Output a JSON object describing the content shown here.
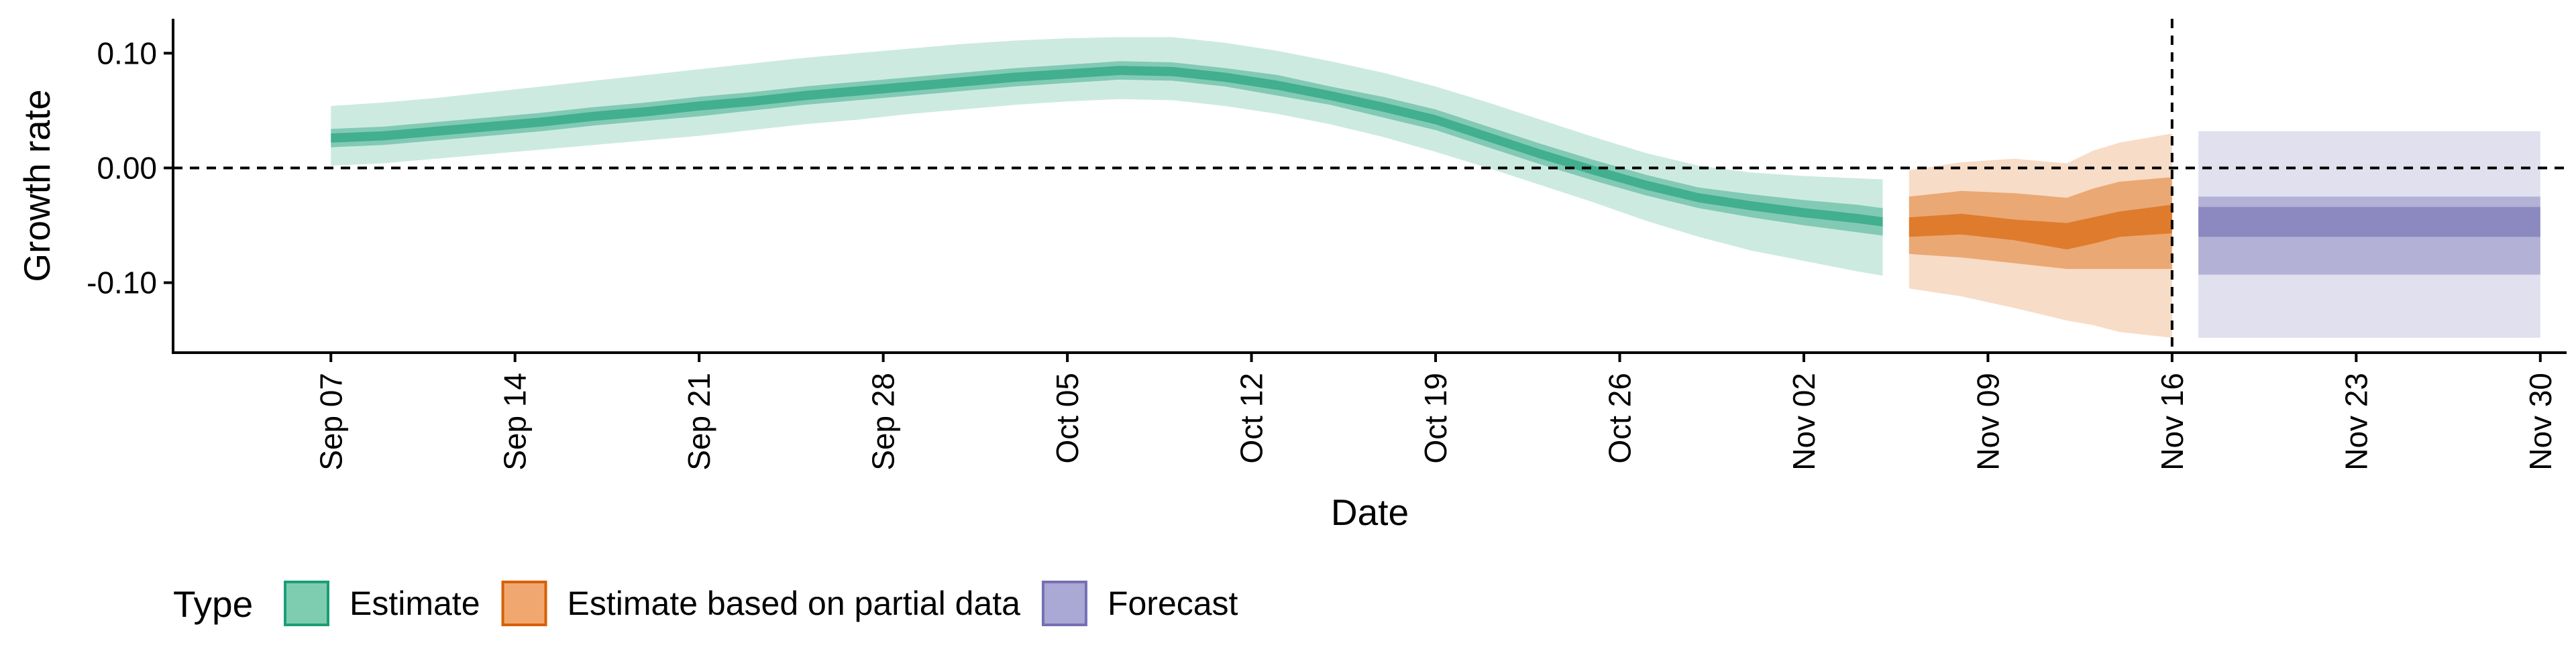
{
  "chart_data": {
    "type": "area",
    "title": "",
    "xlabel": "Date",
    "ylabel": "Growth rate",
    "x_range": [
      "2020-09-01",
      "2020-12-01"
    ],
    "ylim": [
      -0.161,
      0.13
    ],
    "grid": false,
    "y_ticks": [
      0.1,
      0.0,
      -0.1
    ],
    "y_tick_labels": [
      "0.10",
      "0.00",
      "-0.10"
    ],
    "x_ticks": [
      "2020-09-07",
      "2020-09-14",
      "2020-09-21",
      "2020-09-28",
      "2020-10-05",
      "2020-10-12",
      "2020-10-19",
      "2020-10-26",
      "2020-11-02",
      "2020-11-09",
      "2020-11-16",
      "2020-11-23",
      "2020-11-30"
    ],
    "x_tick_labels": [
      "Sep 07",
      "Sep 14",
      "Sep 21",
      "Sep 28",
      "Oct 05",
      "Oct 12",
      "Oct 19",
      "Oct 26",
      "Nov 02",
      "Nov 09",
      "Nov 16",
      "Nov 23",
      "Nov 30"
    ],
    "reference_lines": [
      {
        "axis": "y",
        "value": 0.0,
        "style": "dashed"
      },
      {
        "axis": "x",
        "value": "2020-11-16",
        "style": "dashed"
      }
    ],
    "legend": {
      "title": "Type",
      "position": "bottom-left",
      "entries": [
        {
          "label": "Estimate",
          "fill": "#7fcdb0",
          "stroke": "#1b9e77"
        },
        {
          "label": "Estimate based on partial data",
          "fill": "#f0a870",
          "stroke": "#d95f02"
        },
        {
          "label": "Forecast",
          "fill": "#aaa8d4",
          "stroke": "#7570b3"
        }
      ]
    },
    "series": [
      {
        "name": "Estimate",
        "color": "#1b9e77",
        "x": [
          "2020-09-07",
          "2020-09-09",
          "2020-09-11",
          "2020-09-13",
          "2020-09-15",
          "2020-09-17",
          "2020-09-19",
          "2020-09-21",
          "2020-09-23",
          "2020-09-25",
          "2020-09-27",
          "2020-09-29",
          "2020-10-01",
          "2020-10-03",
          "2020-10-05",
          "2020-10-07",
          "2020-10-09",
          "2020-10-11",
          "2020-10-13",
          "2020-10-15",
          "2020-10-17",
          "2020-10-19",
          "2020-10-21",
          "2020-10-23",
          "2020-10-25",
          "2020-10-27",
          "2020-10-29",
          "2020-10-31",
          "2020-11-02",
          "2020-11-04",
          "2020-11-05"
        ],
        "lower90": [
          0.002,
          0.004,
          0.008,
          0.012,
          0.016,
          0.02,
          0.024,
          0.028,
          0.033,
          0.038,
          0.042,
          0.047,
          0.051,
          0.055,
          0.058,
          0.06,
          0.059,
          0.054,
          0.047,
          0.038,
          0.027,
          0.014,
          0.0,
          -0.015,
          -0.03,
          -0.046,
          -0.06,
          -0.072,
          -0.081,
          -0.09,
          -0.094
        ],
        "lower50": [
          0.018,
          0.02,
          0.024,
          0.028,
          0.032,
          0.037,
          0.041,
          0.045,
          0.05,
          0.055,
          0.059,
          0.063,
          0.067,
          0.071,
          0.074,
          0.077,
          0.076,
          0.071,
          0.063,
          0.055,
          0.044,
          0.033,
          0.018,
          0.003,
          -0.011,
          -0.024,
          -0.035,
          -0.043,
          -0.05,
          -0.056,
          -0.059
        ],
        "lower20": [
          0.022,
          0.024,
          0.028,
          0.032,
          0.036,
          0.041,
          0.045,
          0.05,
          0.054,
          0.059,
          0.063,
          0.067,
          0.071,
          0.075,
          0.078,
          0.081,
          0.08,
          0.075,
          0.068,
          0.059,
          0.049,
          0.038,
          0.023,
          0.008,
          -0.006,
          -0.019,
          -0.03,
          -0.037,
          -0.043,
          -0.048,
          -0.051
        ],
        "upper20": [
          0.03,
          0.032,
          0.036,
          0.04,
          0.044,
          0.049,
          0.053,
          0.058,
          0.062,
          0.067,
          0.071,
          0.075,
          0.079,
          0.083,
          0.086,
          0.089,
          0.088,
          0.083,
          0.076,
          0.067,
          0.057,
          0.046,
          0.031,
          0.016,
          0.002,
          -0.011,
          -0.022,
          -0.029,
          -0.035,
          -0.04,
          -0.043
        ],
        "upper50": [
          0.034,
          0.036,
          0.04,
          0.044,
          0.048,
          0.053,
          0.057,
          0.062,
          0.066,
          0.071,
          0.075,
          0.079,
          0.083,
          0.087,
          0.09,
          0.093,
          0.092,
          0.087,
          0.081,
          0.071,
          0.062,
          0.051,
          0.036,
          0.021,
          0.007,
          -0.006,
          -0.017,
          -0.023,
          -0.028,
          -0.032,
          -0.035
        ],
        "upper90": [
          0.054,
          0.057,
          0.061,
          0.066,
          0.071,
          0.076,
          0.081,
          0.086,
          0.091,
          0.096,
          0.1,
          0.104,
          0.108,
          0.111,
          0.113,
          0.114,
          0.114,
          0.109,
          0.102,
          0.093,
          0.083,
          0.071,
          0.057,
          0.042,
          0.027,
          0.013,
          0.002,
          -0.004,
          -0.007,
          -0.009,
          -0.01
        ]
      },
      {
        "name": "Estimate based on partial data",
        "color": "#d95f02",
        "x": [
          "2020-11-06",
          "2020-11-08",
          "2020-11-10",
          "2020-11-12",
          "2020-11-13",
          "2020-11-14",
          "2020-11-16"
        ],
        "lower90": [
          -0.105,
          -0.112,
          -0.122,
          -0.133,
          -0.137,
          -0.143,
          -0.148
        ],
        "lower50": [
          -0.075,
          -0.078,
          -0.083,
          -0.088,
          -0.088,
          -0.088,
          -0.088
        ],
        "lower20": [
          -0.06,
          -0.058,
          -0.063,
          -0.071,
          -0.066,
          -0.06,
          -0.057
        ],
        "upper20": [
          -0.043,
          -0.04,
          -0.045,
          -0.048,
          -0.043,
          -0.038,
          -0.032
        ],
        "upper50": [
          -0.025,
          -0.02,
          -0.022,
          -0.026,
          -0.018,
          -0.012,
          -0.008
        ],
        "upper90": [
          -0.002,
          0.005,
          0.008,
          0.004,
          0.015,
          0.022,
          0.03
        ]
      },
      {
        "name": "Forecast",
        "color": "#7570b3",
        "x": [
          "2020-11-17",
          "2020-11-30"
        ],
        "lower90": [
          -0.148,
          -0.148
        ],
        "lower50": [
          -0.093,
          -0.093
        ],
        "lower20": [
          -0.06,
          -0.06
        ],
        "upper20": [
          -0.034,
          -0.034
        ],
        "upper50": [
          -0.025,
          -0.025
        ],
        "upper90": [
          0.032,
          0.032
        ]
      }
    ]
  }
}
